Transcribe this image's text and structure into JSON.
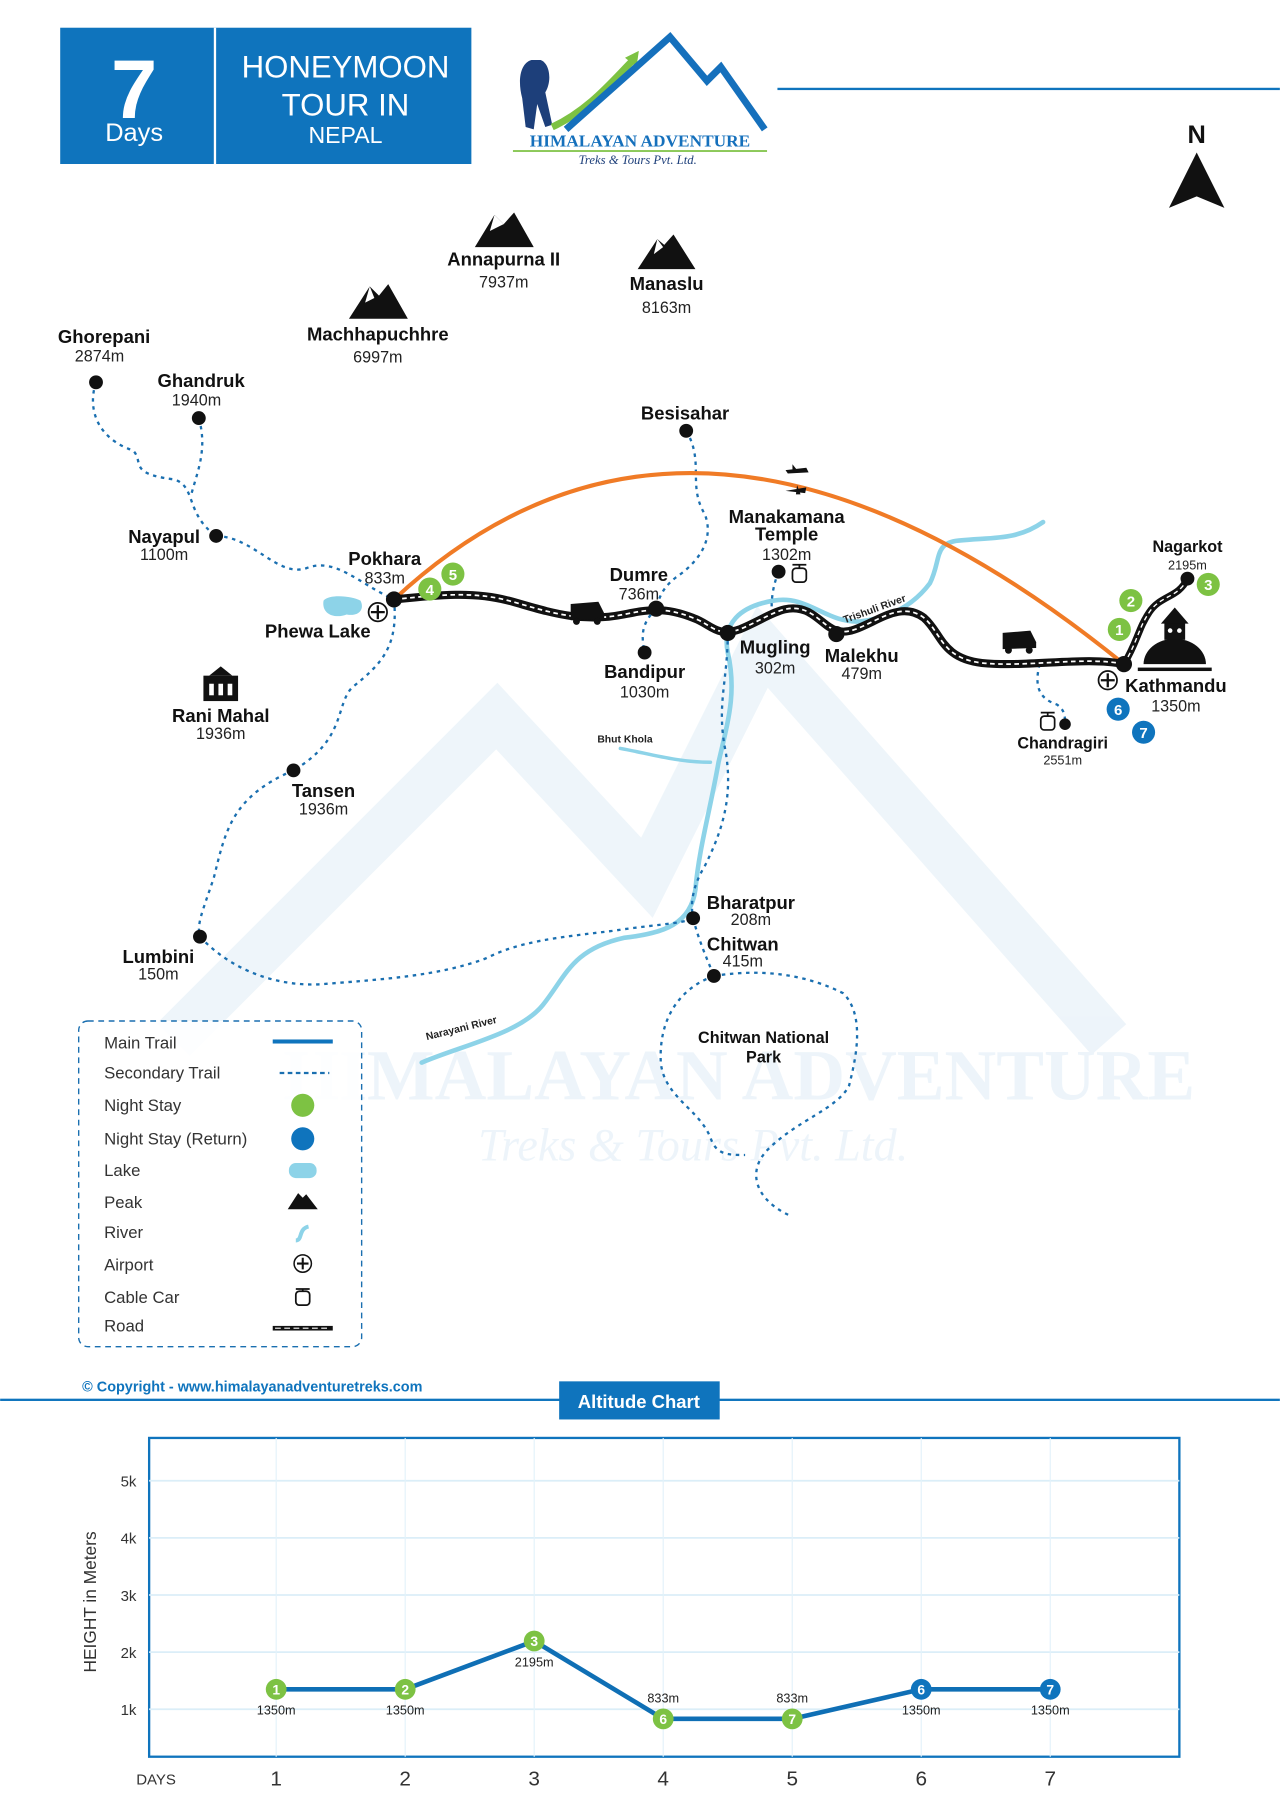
{
  "header": {
    "days_number": "7",
    "days_label": "Days",
    "title_line1": "HONEYMOON",
    "title_line2": "TOUR IN",
    "title_line3": "NEPAL"
  },
  "logo": {
    "name": "HIMALAYAN ADVENTURE",
    "tagline": "Treks & Tours Pvt. Ltd."
  },
  "compass": {
    "label": "N"
  },
  "peaks": [
    {
      "name": "Annapurna II",
      "elevation": "7937m"
    },
    {
      "name": "Manaslu",
      "elevation": "8163m"
    },
    {
      "name": "Machhapuchhre",
      "elevation": "6997m"
    }
  ],
  "places": {
    "ghorepani": {
      "name": "Ghorepani",
      "elevation": "2874m"
    },
    "ghandruk": {
      "name": "Ghandruk",
      "elevation": "1940m"
    },
    "nayapul": {
      "name": "Nayapul",
      "elevation": "1100m"
    },
    "pokhara": {
      "name": "Pokhara",
      "elevation": "833m"
    },
    "phewa": {
      "name": "Phewa Lake"
    },
    "rani_mahal": {
      "name": "Rani Mahal",
      "elevation": "1936m"
    },
    "tansen": {
      "name": "Tansen",
      "elevation": "1936m"
    },
    "lumbini": {
      "name": "Lumbini",
      "elevation": "150m"
    },
    "besisahar": {
      "name": "Besisahar"
    },
    "dumre": {
      "name": "Dumre",
      "elevation": "736m"
    },
    "bandipur": {
      "name": "Bandipur",
      "elevation": "1030m"
    },
    "manakamana": {
      "name1": "Manakamana",
      "name2": "Temple",
      "elevation": "1302m"
    },
    "mugling": {
      "name": "Mugling",
      "elevation": "302m"
    },
    "malekhu": {
      "name": "Malekhu",
      "elevation": "479m"
    },
    "kathmandu": {
      "name": "Kathmandu",
      "elevation": "1350m"
    },
    "nagarkot": {
      "name": "Nagarkot",
      "elevation": "2195m"
    },
    "chandragiri": {
      "name": "Chandragiri",
      "elevation": "2551m"
    },
    "bharatpur": {
      "name": "Bharatpur",
      "elevation": "208m"
    },
    "chitwan": {
      "name": "Chitwan",
      "elevation": "415m"
    },
    "chitwan_park": {
      "name1": "Chitwan National",
      "name2": "Park"
    }
  },
  "rivers": {
    "bhut_khola": "Bhut Khola",
    "narayani": "Narayani River",
    "trishuli": "Trishuli River"
  },
  "night_stays": {
    "outbound": [
      "1",
      "2",
      "3",
      "4",
      "5"
    ],
    "return": [
      "6",
      "7"
    ]
  },
  "watermark": {
    "line1": "HIMALAYAN ADVENTURE",
    "line2": "Treks & Tours Pvt. Ltd."
  },
  "legend": {
    "items": [
      "Main Trail",
      "Secondary Trail",
      "Night Stay",
      "Night Stay (Return)",
      "Lake",
      "Peak",
      "River",
      "Airport",
      "Cable Car",
      "Road"
    ]
  },
  "copyright": "© Copyright - www.himalayanadventuretreks.com",
  "altitude_button": "Altitude Chart",
  "colors": {
    "brand_blue": "#0f74bd",
    "night_green": "#7dc243",
    "flight_orange": "#f07b26",
    "river": "#8dd3e8"
  },
  "chart_data": {
    "type": "line",
    "title": "Altitude Chart",
    "xlabel": "DAYS",
    "ylabel": "HEIGHT in Meters",
    "categories": [
      "1",
      "2",
      "3",
      "4",
      "5",
      "6",
      "7"
    ],
    "values": [
      1350,
      1350,
      2195,
      833,
      833,
      1350,
      1350
    ],
    "value_labels": [
      "1350m",
      "1350m",
      "2195m",
      "833m",
      "833m",
      "1350m",
      "1350m"
    ],
    "marker_labels": [
      "1",
      "2",
      "3",
      "6",
      "7",
      "6",
      "7"
    ],
    "marker_colors": [
      "#7dc243",
      "#7dc243",
      "#7dc243",
      "#7dc243",
      "#7dc243",
      "#0f74bd",
      "#0f74bd"
    ],
    "yticks": [
      {
        "v": 1000,
        "label": "1k"
      },
      {
        "v": 2000,
        "label": "2k"
      },
      {
        "v": 3000,
        "label": "3k"
      },
      {
        "v": 4000,
        "label": "4k"
      },
      {
        "v": 5000,
        "label": "5k"
      }
    ],
    "ylim": [
      170,
      5750
    ],
    "grid": true
  }
}
